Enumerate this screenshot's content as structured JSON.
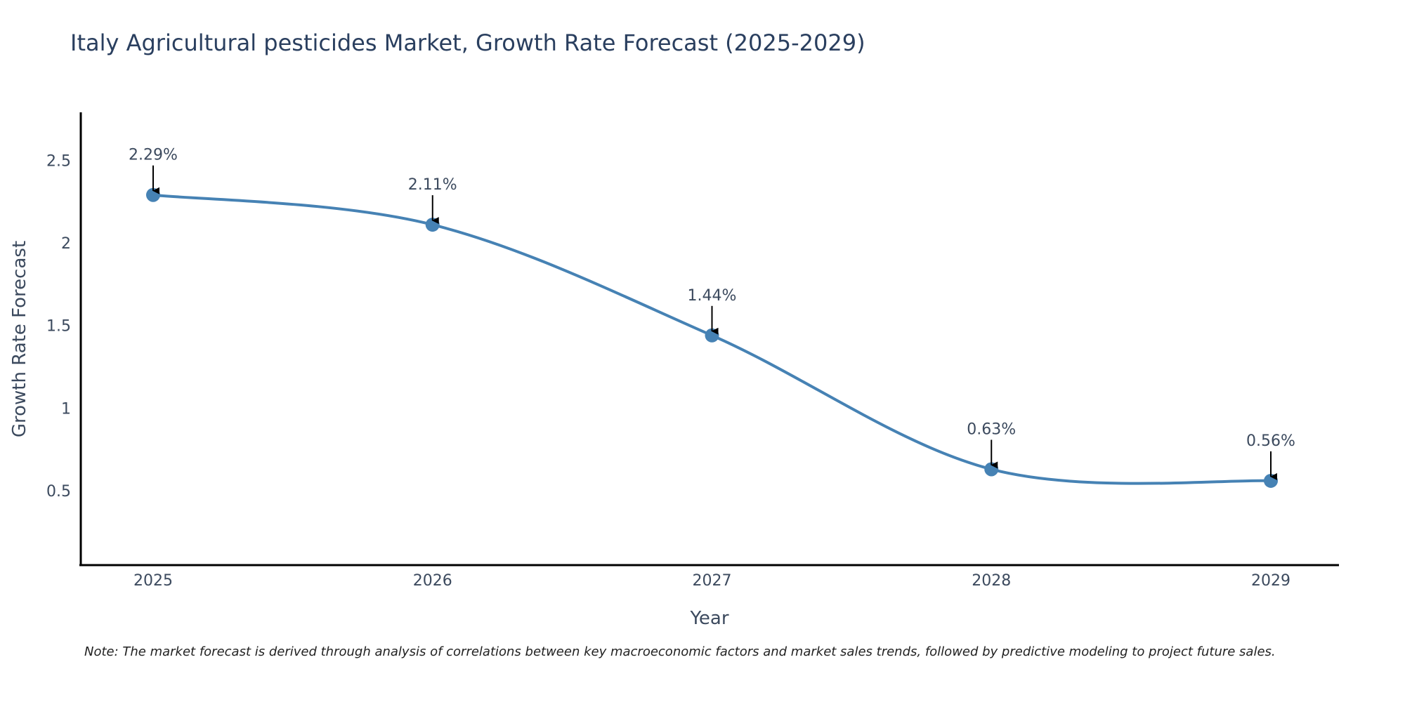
{
  "chart_data": {
    "type": "line",
    "title": "Italy Agricultural pesticides Market, Growth Rate Forecast (2025-2029)",
    "xlabel": "Year",
    "ylabel": "Growth Rate Forecast",
    "categories": [
      "2025",
      "2026",
      "2027",
      "2028",
      "2029"
    ],
    "series": [
      {
        "name": "Growth Rate Forecast",
        "values": [
          2.29,
          2.11,
          1.44,
          0.63,
          0.56
        ],
        "labels": [
          "2.29%",
          "2.11%",
          "1.44%",
          "0.63%",
          "0.56%"
        ],
        "color": "#4682b4"
      }
    ],
    "ylim": [
      0.05,
      2.79
    ],
    "yticks": [
      0.5,
      1,
      1.5,
      2,
      2.5
    ],
    "ytick_labels": [
      "0.5",
      "1",
      "1.5",
      "2",
      "2.5"
    ],
    "grid": false,
    "line_shape": "spline"
  },
  "note": "Note: The market forecast is derived through analysis of correlations between key macroeconomic factors and market sales trends, followed by predictive modeling to project future sales."
}
